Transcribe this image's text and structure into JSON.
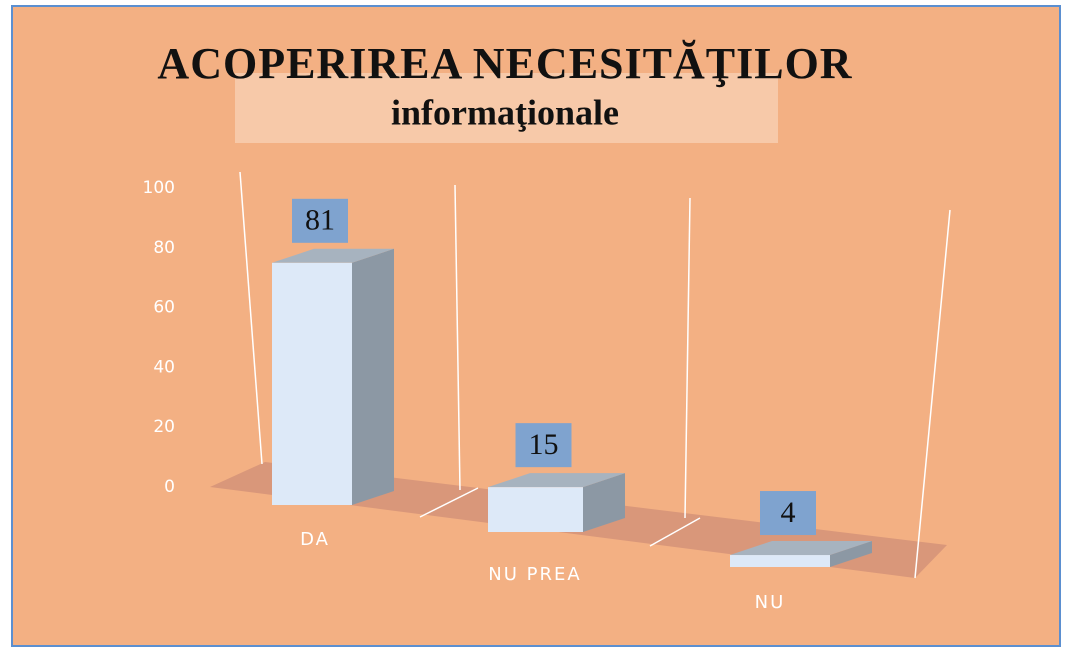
{
  "chart_data": {
    "type": "bar3d",
    "title": "ACOPERIREA NECESITĂŢILOR",
    "subtitle": "informaţionale",
    "categories": [
      "DA",
      "NU PREA",
      "NU"
    ],
    "values": [
      81,
      15,
      4
    ],
    "color": "#dde9f8",
    "ylim": [
      0,
      100
    ],
    "yticks": [
      0,
      20,
      40,
      60,
      80,
      100
    ]
  }
}
